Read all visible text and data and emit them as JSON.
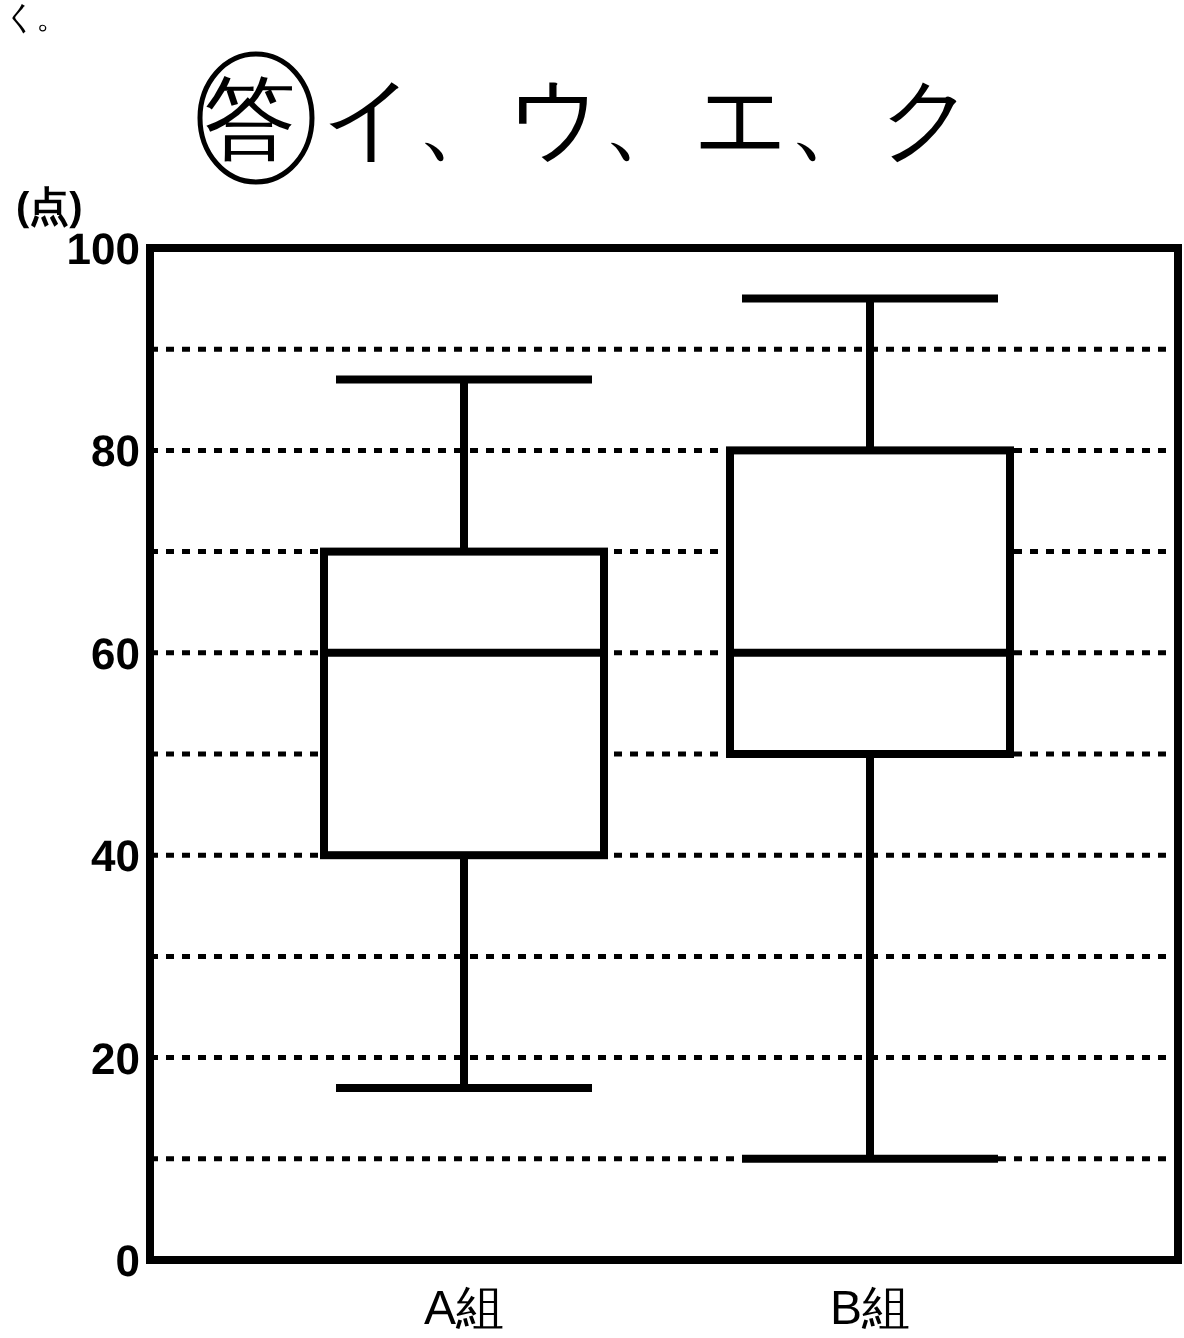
{
  "chart_data": {
    "type": "box",
    "ylabel": "(点)",
    "categories": [
      "A組",
      "B組"
    ],
    "boxes": [
      {
        "low": 17,
        "q1": 40,
        "median": 60,
        "q3": 70,
        "high": 87
      },
      {
        "low": 10,
        "q1": 50,
        "median": 60,
        "q3": 80,
        "high": 95
      }
    ],
    "color": "#000000",
    "ylim": [
      0,
      100
    ],
    "yticks": [
      0,
      {
        "value": 10,
        "label": null
      },
      20,
      {
        "value": 30,
        "label": null
      },
      40,
      {
        "value": 50,
        "label": null
      },
      60,
      {
        "value": 70,
        "label": null
      },
      80,
      {
        "value": 90,
        "label": null
      },
      100
    ],
    "grid": "y",
    "annotations": [
      "く。",
      "答 イ、ウ、エ、ク"
    ]
  }
}
